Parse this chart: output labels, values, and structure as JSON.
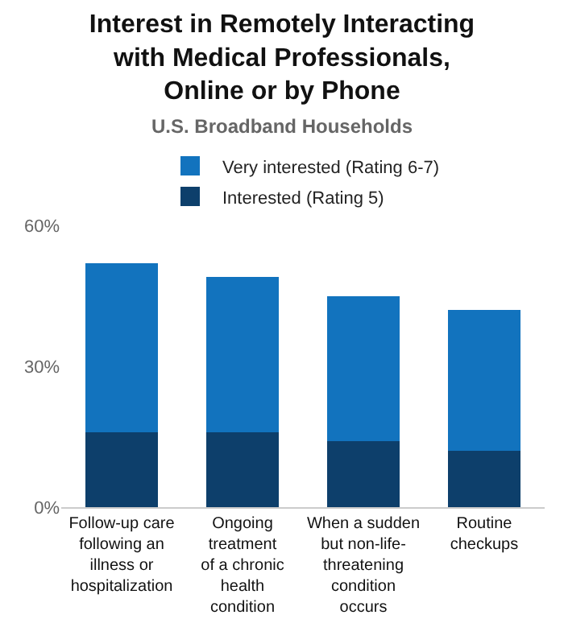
{
  "chart_data": {
    "type": "bar",
    "stacked": true,
    "title": "Interest in Remotely Interacting\nwith Medical Professionals,\nOnline or by Phone",
    "subtitle": "U.S. Broadband Households",
    "categories": [
      "Follow-up care\nfollowing an\nillness or\nhospitalization",
      "Ongoing\ntreatment\nof a chronic\nhealth\ncondition",
      "When a sudden\nbut non-life-\nthreatening\ncondition\noccurs",
      "Routine\ncheckups"
    ],
    "series": [
      {
        "name": "Interested (Rating 5)",
        "color": "#0d3f6b",
        "values": [
          16,
          16,
          14,
          12
        ]
      },
      {
        "name": "Very interested (Rating 6-7)",
        "color": "#1273be",
        "values": [
          36,
          33,
          31,
          30
        ]
      }
    ],
    "ylim": [
      0,
      60
    ],
    "yticks": [
      {
        "value": 0,
        "label": "0%"
      },
      {
        "value": 30,
        "label": "30%"
      },
      {
        "value": 60,
        "label": "60%"
      }
    ],
    "legend": "top"
  }
}
